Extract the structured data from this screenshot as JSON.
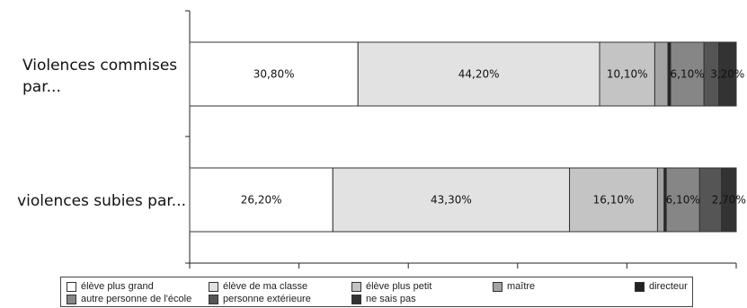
{
  "chart_data": {
    "type": "bar",
    "orientation": "horizontal",
    "stacked": true,
    "percent_scale": true,
    "categories": [
      "Violences commises par...",
      "violences subies par..."
    ],
    "category_lines": [
      [
        "Violences commises",
        "par..."
      ],
      [
        "violences subies par..."
      ]
    ],
    "series": [
      {
        "name": "élève plus grand",
        "color": "#ffffff",
        "values": [
          30.8,
          26.2
        ],
        "labels": [
          "30,80%",
          "26,20%"
        ]
      },
      {
        "name": "élève de ma classe",
        "color": "#e2e2e2",
        "values": [
          44.2,
          43.3
        ],
        "labels": [
          "44,20%",
          "43,30%"
        ]
      },
      {
        "name": "élève plus petit",
        "color": "#c4c4c4",
        "values": [
          10.1,
          16.1
        ],
        "labels": [
          "10,10%",
          "16,10%"
        ]
      },
      {
        "name": "maître",
        "color": "#a3a3a3",
        "values": [
          2.4,
          1.2
        ],
        "labels": [
          "",
          ""
        ]
      },
      {
        "name": "directeur",
        "color": "#222222",
        "values": [
          0.5,
          0.4
        ],
        "labels": [
          "",
          ""
        ]
      },
      {
        "name": "autre personne de l'école",
        "color": "#868686",
        "values": [
          6.1,
          6.1
        ],
        "labels": [
          "6,10%",
          "6,10%"
        ]
      },
      {
        "name": "personne extérieure",
        "color": "#555555",
        "values": [
          2.7,
          4.0
        ],
        "labels": [
          "",
          ""
        ]
      },
      {
        "name": "ne sais pas",
        "color": "#333333",
        "values": [
          3.2,
          2.7
        ],
        "labels": [
          "3,20%",
          "2,70%"
        ]
      }
    ],
    "xlim": [
      0,
      100
    ],
    "grid": false,
    "legend_position": "bottom"
  },
  "legend": [
    {
      "label": "élève plus grand",
      "color": "#ffffff"
    },
    {
      "label": "élève de ma classe",
      "color": "#e2e2e2"
    },
    {
      "label": "élève plus petit",
      "color": "#c4c4c4"
    },
    {
      "label": "maître",
      "color": "#a3a3a3"
    },
    {
      "label": "directeur",
      "color": "#222222"
    },
    {
      "label": "autre personne de l'école",
      "color": "#868686"
    },
    {
      "label": "personne extérieure",
      "color": "#555555"
    },
    {
      "label": "ne sais pas",
      "color": "#333333"
    }
  ]
}
